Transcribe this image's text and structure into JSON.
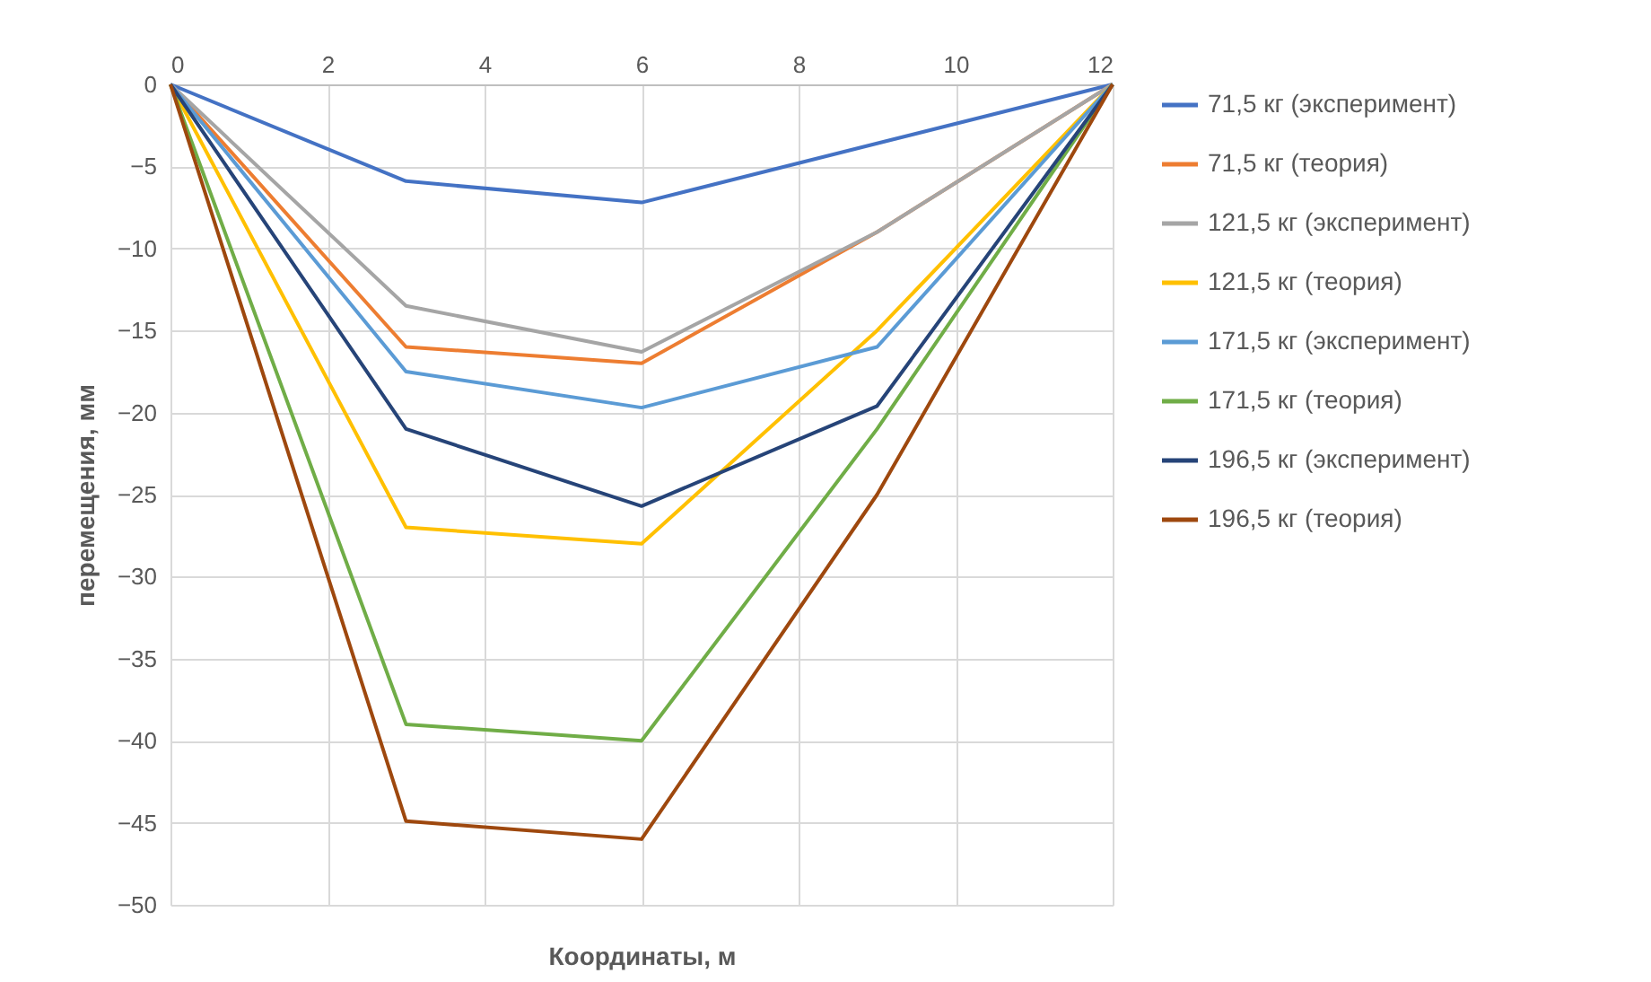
{
  "chart_data": {
    "type": "line",
    "xlabel": "Координаты, м",
    "ylabel": "перемещения, мм",
    "x": [
      0,
      3,
      6,
      9,
      12
    ],
    "xlim": [
      0,
      12
    ],
    "xticks": [
      0,
      2,
      4,
      6,
      8,
      10,
      12
    ],
    "ylim": [
      -50,
      0
    ],
    "yticks": [
      -50,
      -45,
      -40,
      -35,
      -30,
      -25,
      -20,
      -15,
      -10,
      -5,
      0
    ],
    "grid": true,
    "legend": "right",
    "line_style": "solid",
    "series": [
      {
        "name": "71,5 кг (эксперимент)",
        "color": "#4472c4",
        "values": [
          0,
          -5.9,
          -7.2,
          -3.6,
          0
        ]
      },
      {
        "name": "71,5 кг (теория)",
        "color": "#ed7d31",
        "values": [
          0,
          -16,
          -17,
          -9,
          0
        ]
      },
      {
        "name": "121,5 кг (эксперимент)",
        "color": "#a5a5a5",
        "values": [
          0,
          -13.5,
          -16.3,
          -9,
          0
        ]
      },
      {
        "name": "121,5 кг (теория)",
        "color": "#ffc000",
        "values": [
          0,
          -27,
          -28,
          -15,
          0
        ]
      },
      {
        "name": "171,5 кг (эксперимент)",
        "color": "#5b9bd5",
        "values": [
          0,
          -17.5,
          -19.7,
          -16,
          0
        ]
      },
      {
        "name": "171,5 кг (теория)",
        "color": "#70ad47",
        "values": [
          0,
          -39,
          -40,
          -21,
          0
        ]
      },
      {
        "name": "196,5 кг (эксперимент)",
        "color": "#264478",
        "values": [
          0,
          -21,
          -25.7,
          -19.6,
          0
        ]
      },
      {
        "name": "196,5 кг (теория)",
        "color": "#9e480e",
        "values": [
          0,
          -44.9,
          -46,
          -25,
          0
        ]
      }
    ]
  }
}
